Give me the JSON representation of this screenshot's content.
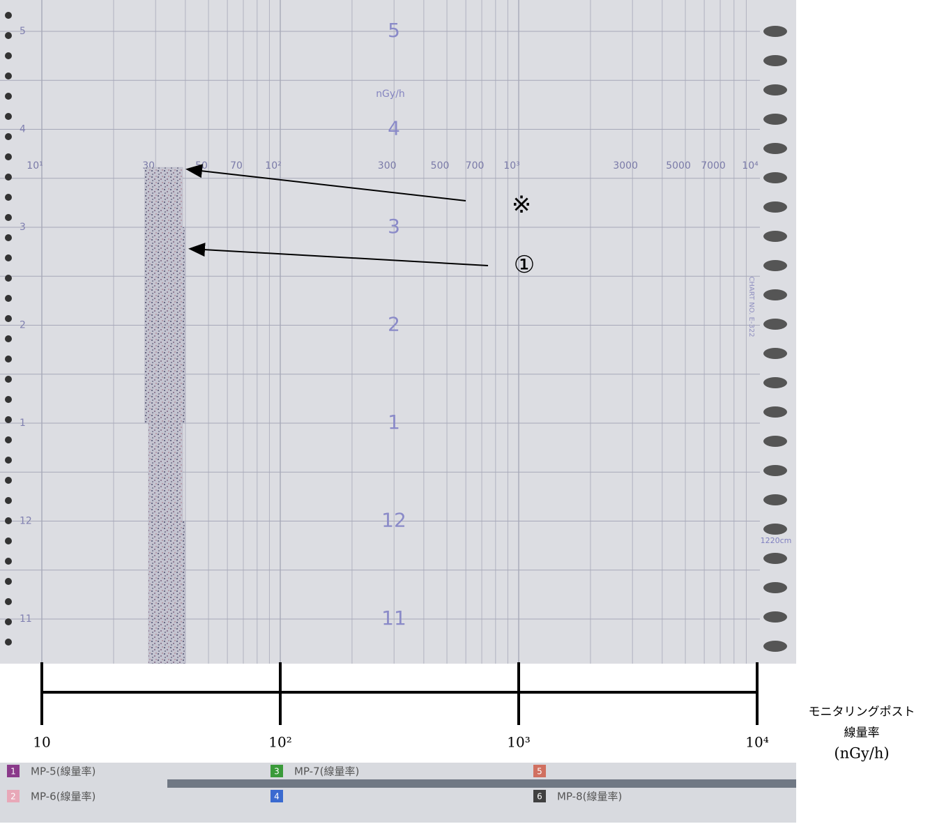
{
  "chart_data": {
    "type": "band",
    "xlim": [
      10,
      10000
    ],
    "log_x": true,
    "xticks": [
      {
        "value": 10,
        "label": "10"
      },
      {
        "value": 100,
        "label": "10²"
      },
      {
        "value": 1000,
        "label": "10³"
      },
      {
        "value": 10000,
        "label": "10⁴"
      }
    ],
    "xlabel": [
      "モニタリングポスト",
      "線量率",
      "(nGy/h)"
    ],
    "paper_scale": [
      {
        "value": 10,
        "label": "10¹"
      },
      30,
      50,
      70,
      {
        "value": 100,
        "label": "10²"
      },
      300,
      500,
      700,
      {
        "value": 1000,
        "label": "10³"
      },
      3000,
      5000,
      7000,
      {
        "value": 10000,
        "label": "10⁴"
      }
    ],
    "paper_unit": "nGy/h",
    "hours": [
      "5",
      "4",
      "3",
      "2",
      "1",
      "12",
      "11"
    ],
    "band": {
      "color": "#6a6a8a",
      "low": [
        27,
        27,
        27,
        28,
        28,
        28
      ],
      "high": [
        39,
        40,
        40,
        39,
        40,
        40
      ]
    },
    "annotations": [
      "※",
      "①"
    ],
    "chart_no": "CHART NO. E-322",
    "length": "1220cm",
    "legend": [
      {
        "number": "1",
        "name": "MP-5(線量率)",
        "color": "#8a3a8a"
      },
      {
        "number": "2",
        "name": "MP-6(線量率)",
        "color": "#e8a8b8"
      },
      {
        "number": "3",
        "name": "MP-7(線量率)",
        "color": "#3a9a3a"
      },
      {
        "number": "4",
        "name": null,
        "color": "#3a6ad0"
      },
      {
        "number": "5",
        "name": null,
        "color": "#d07060"
      },
      {
        "number": "6",
        "name": "MP-8(線量率)",
        "color": "#404040"
      }
    ]
  }
}
